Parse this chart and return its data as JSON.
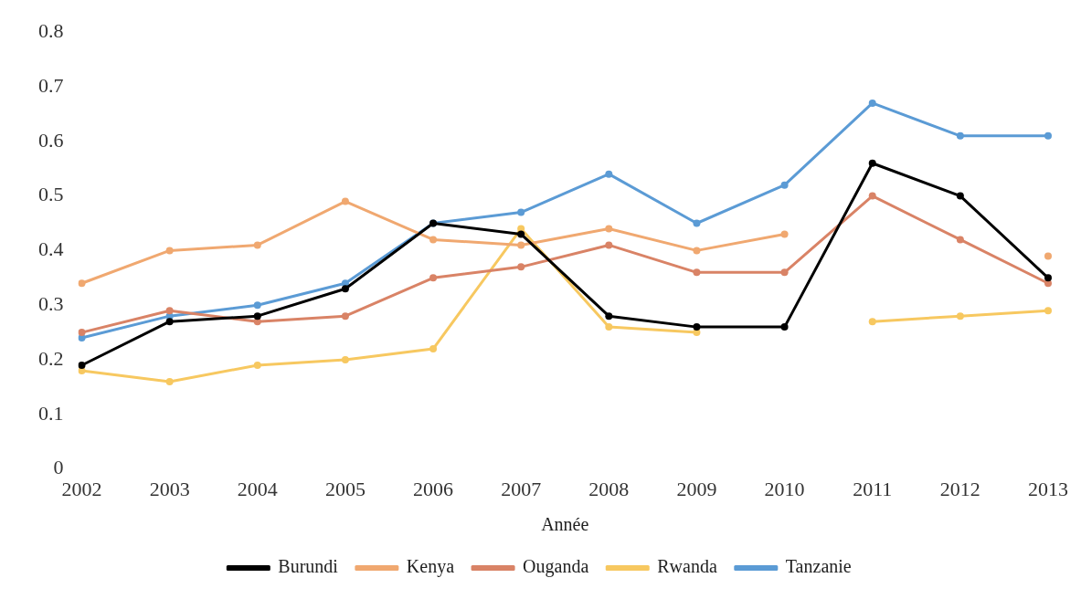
{
  "chart_data": {
    "type": "line",
    "xlabel": "Année",
    "categories": [
      "2002",
      "2003",
      "2004",
      "2005",
      "2006",
      "2007",
      "2008",
      "2009",
      "2010",
      "2011",
      "2012",
      "2013"
    ],
    "series": [
      {
        "name": "Burundi",
        "color": "#000000",
        "values": [
          0.19,
          0.27,
          0.28,
          0.33,
          0.45,
          0.43,
          0.28,
          0.26,
          0.26,
          0.56,
          0.5,
          0.35
        ]
      },
      {
        "name": "Kenya",
        "color": "#f0a870",
        "values": [
          0.34,
          0.4,
          0.41,
          0.49,
          0.42,
          0.41,
          0.44,
          0.4,
          0.43,
          null,
          null,
          0.39
        ]
      },
      {
        "name": "Ouganda",
        "color": "#d98366",
        "values": [
          0.25,
          0.29,
          0.27,
          0.28,
          0.35,
          0.37,
          0.41,
          0.36,
          0.36,
          0.5,
          0.42,
          0.34
        ]
      },
      {
        "name": "Rwanda",
        "color": "#f7c860",
        "values": [
          0.18,
          0.16,
          0.19,
          0.2,
          0.22,
          0.44,
          0.26,
          0.25,
          null,
          0.27,
          0.28,
          0.29
        ]
      },
      {
        "name": "Tanzanie",
        "color": "#5b9bd5",
        "values": [
          0.24,
          0.28,
          0.3,
          0.34,
          0.45,
          0.47,
          0.54,
          0.45,
          0.52,
          0.67,
          0.61,
          0.61
        ]
      }
    ],
    "ylim": [
      0,
      0.8
    ],
    "yticks": [
      0,
      0.1,
      0.2,
      0.3,
      0.4,
      0.5,
      0.6,
      0.7,
      0.8
    ],
    "grid": false,
    "legend": "bottom",
    "marker": "circle",
    "line_style": "solid"
  }
}
